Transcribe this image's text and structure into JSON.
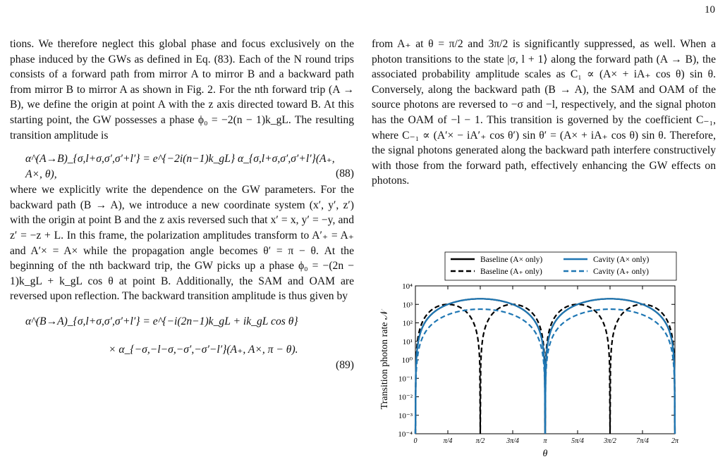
{
  "page_number": "10",
  "left_column": {
    "para1": "tions. We therefore neglect this global phase and focus exclusively on the phase induced by the GWs as defined in Eq. (83). Each of the N round trips consists of a forward path from mirror A to mirror B and a backward path from mirror B to mirror A as shown in Fig. 2. For the nth forward trip (A → B), we define the origin at point A with the z axis directed toward B. At this starting point, the GW possesses a phase ϕ₀ = −2(n − 1)k_gL. The resulting transition amplitude is",
    "eq88": "α^(A→B)_{σ,l+σ,σ′,σ′+l′} = e^{−2i(n−1)k_gL} α_{σ,l+σ,σ′,σ′+l′}(A₊, A×, θ),",
    "eq88_num": "(88)",
    "para2": "where we explicitly write the dependence on the GW parameters. For the backward path (B → A), we introduce a new coordinate system (x′, y′, z′) with the origin at point B and the z axis reversed such that x′ = x, y′ = −y, and z′ = −z + L. In this frame, the polarization amplitudes transform to A′₊ = A₊ and A′× = A× while the propagation angle becomes θ′ = π − θ. At the beginning of the nth backward trip, the GW picks up a phase ϕ₀ = −(2n − 1)k_gL + k_gL cos θ at point B. Additionally, the SAM and OAM are reversed upon reflection. The backward transition amplitude is thus given by",
    "eq89_line1": "α^(B→A)_{σ,l+σ,σ′,σ′+l′} = e^{−i(2n−1)k_gL + ik_gL cos θ}",
    "eq89_line2": "× α_{−σ,−l−σ,−σ′,−σ′−l′}(A₊, A×, π − θ).",
    "eq89_num": "(89)"
  },
  "right_column": {
    "para1": "from A₊ at θ = π/2 and 3π/2 is significantly suppressed, as well. When a photon transitions to the state |σ, l + 1⟩ along the forward path (A → B), the associated probability amplitude scales as C₁ ∝ (A× + iA₊ cos θ) sin θ. Conversely, along the backward path (B → A), the SAM and OAM of the source photons are reversed to −σ and −l, respectively, and the signal photon has the OAM of −l − 1. This transition is governed by the coefficient C₋₁, where C₋₁ ∝ (A′× − iA′₊ cos θ′) sin θ′ = (A× + iA₊ cos θ) sin θ. Therefore, the signal photons generated along the backward path interfere constructively with those from the forward path, effectively enhancing the GW effects on photons."
  },
  "chart_data": {
    "type": "line",
    "title": "",
    "xlabel": "θ",
    "ylabel": "Transition photon rate 𝒩",
    "yscale": "log",
    "ylim": [
      0.0001,
      10000
    ],
    "xlim": [
      0,
      6.2832
    ],
    "xticks": [
      "0",
      "π/4",
      "π/2",
      "3π/4",
      "π",
      "5π/4",
      "3π/2",
      "7π/4",
      "2π"
    ],
    "yticks": [
      "10⁻⁴",
      "10⁻³",
      "10⁻²",
      "10⁻¹",
      "10⁰",
      "10¹",
      "10²",
      "10³",
      "10⁴"
    ],
    "legend_position": "top",
    "series": [
      {
        "name": "Baseline (A× only)",
        "color": "#000000",
        "style": "solid",
        "peak": 2000,
        "model": "sin2"
      },
      {
        "name": "Baseline (A₊ only)",
        "color": "#000000",
        "style": "dashed",
        "peak": 1000,
        "model": "sin2cos2"
      },
      {
        "name": "Cavity (A× only)",
        "color": "#1f77b4",
        "style": "solid",
        "peak": 2000,
        "model": "sin2"
      },
      {
        "name": "Cavity (A₊ only)",
        "color": "#1f77b4",
        "style": "dashed",
        "peak": 550,
        "model": "sin2"
      }
    ]
  }
}
